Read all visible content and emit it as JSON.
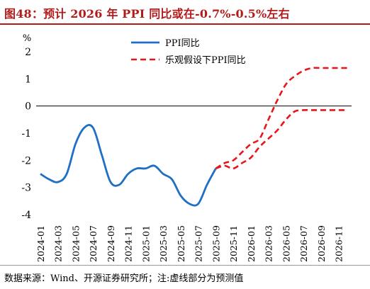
{
  "title": "图48：预计 2026 年 PPI 同比或在-0.7%-0.5%左右",
  "source": "数据来源：Wind、开源证券研究所；注:虚线部分为预测值",
  "chart_data": {
    "type": "line",
    "ylabel": "%",
    "ylim": [
      -4,
      2
    ],
    "yticks": [
      "-4",
      "-3",
      "-2",
      "-1",
      "0",
      "1",
      "2"
    ],
    "xticks": [
      "2024-01",
      "2024-03",
      "2024-05",
      "2024-07",
      "2024-09",
      "2024-11",
      "2025-01",
      "2025-03",
      "2025-05",
      "2025-07",
      "2025-09",
      "2025-11",
      "2026-01",
      "2026-03",
      "2026-05",
      "2026-07",
      "2026-09",
      "2026-11"
    ],
    "x_months": [
      "2024-01",
      "2024-02",
      "2024-03",
      "2024-04",
      "2024-05",
      "2024-06",
      "2024-07",
      "2024-08",
      "2024-09",
      "2024-10",
      "2024-11",
      "2024-12",
      "2025-01",
      "2025-02",
      "2025-03",
      "2025-04",
      "2025-05",
      "2025-06",
      "2025-07",
      "2025-08",
      "2025-09",
      "2025-10",
      "2025-11",
      "2025-12",
      "2026-01",
      "2026-02",
      "2026-03",
      "2026-04",
      "2026-05",
      "2026-06",
      "2026-07",
      "2026-08",
      "2026-09",
      "2026-10",
      "2026-11",
      "2026-12"
    ],
    "legend": [
      "PPI同比",
      "乐观假设下PPI同比"
    ],
    "series": [
      {
        "name": "PPI同比",
        "color": "#1f6fc5",
        "style": "solid",
        "start": 0,
        "values": [
          -2.5,
          -2.7,
          -2.8,
          -2.5,
          -1.4,
          -0.8,
          -0.8,
          -1.8,
          -2.8,
          -2.9,
          -2.5,
          -2.3,
          -2.3,
          -2.2,
          -2.5,
          -2.7,
          -3.3,
          -3.6,
          -3.6,
          -2.9,
          -2.3
        ]
      },
      {
        "name": "",
        "color": "#e8151b",
        "style": "dashed",
        "start": 20,
        "values": [
          -2.3,
          -2.2,
          -2.3,
          -2.1,
          -1.9,
          -1.5,
          -1.2,
          -0.9,
          -0.5,
          -0.2,
          -0.15,
          -0.15,
          -0.15,
          -0.15,
          -0.15,
          -0.15
        ]
      },
      {
        "name": "乐观假设下PPI同比",
        "color": "#e8151b",
        "style": "dashed",
        "start": 20,
        "values": [
          -2.3,
          -2.1,
          -2.0,
          -1.7,
          -1.4,
          -1.2,
          -0.5,
          0.2,
          0.8,
          1.1,
          1.3,
          1.4,
          1.4,
          1.4,
          1.4,
          1.4
        ]
      }
    ]
  }
}
